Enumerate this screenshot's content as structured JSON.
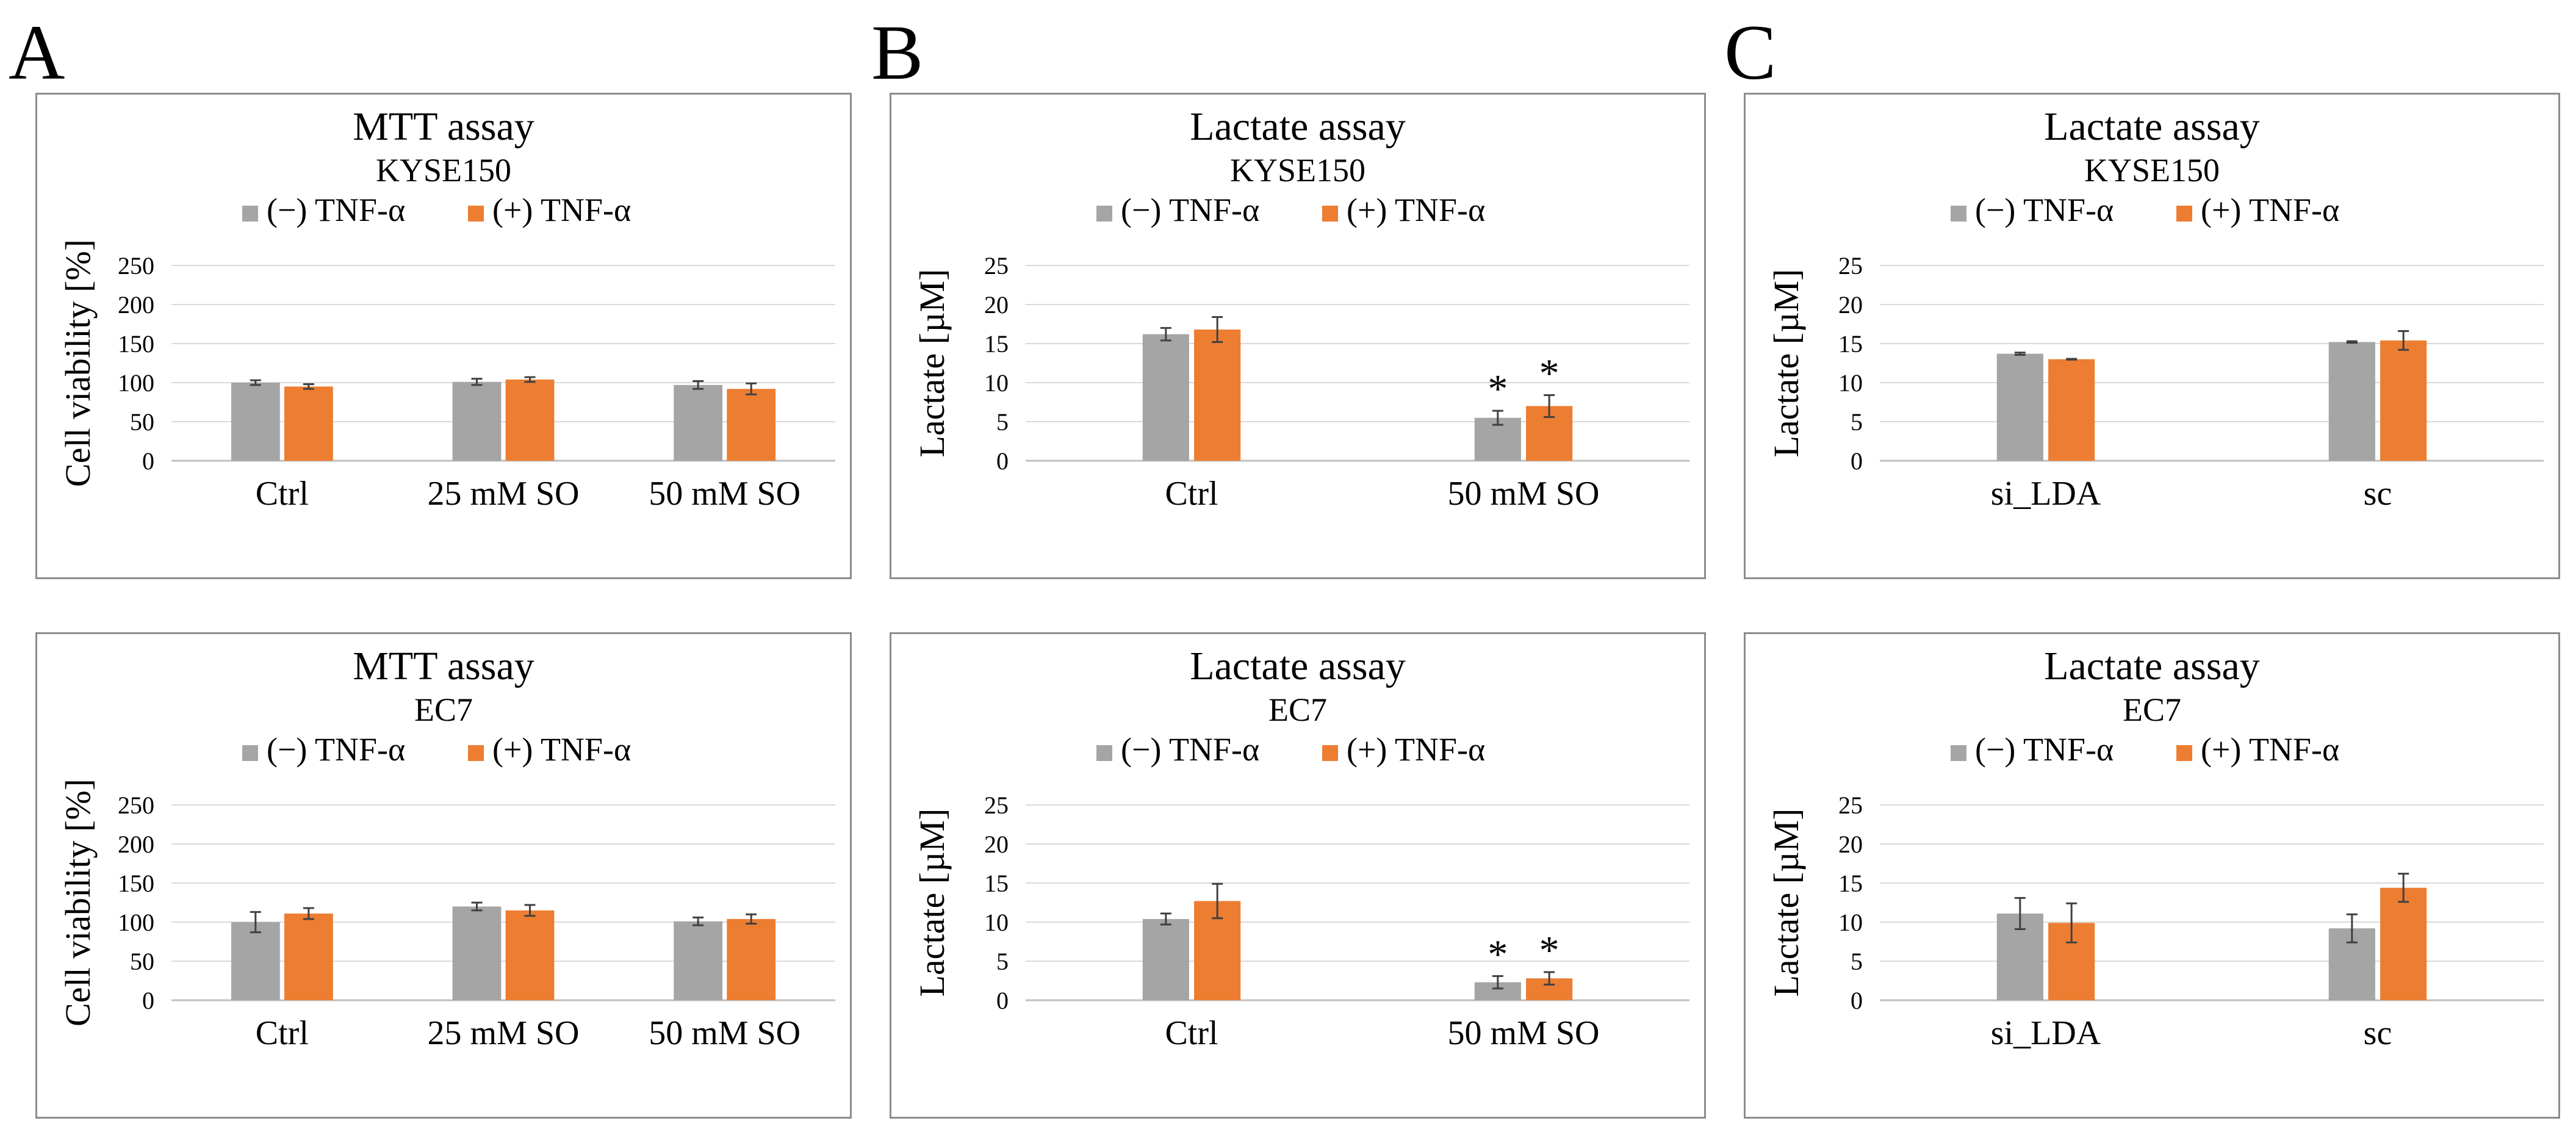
{
  "panel_labels": [
    "A",
    "B",
    "C"
  ],
  "colors": {
    "minus": "#a5a5a5",
    "plus": "#ed7d31",
    "grid": "#d9d9d9",
    "axis": "#bfbfbf",
    "error": "#404040"
  },
  "chart_data": [
    {
      "type": "bar",
      "title": "MTT assay",
      "subtitle": "KYSE150",
      "ylabel": "Cell viability [%]",
      "xlabel": "",
      "ylim": [
        0,
        250
      ],
      "yticks": [
        0,
        50,
        100,
        150,
        200,
        250
      ],
      "grid": true,
      "legend_position": "top",
      "categories": [
        "Ctrl",
        "25 mM SO",
        "50 mM SO"
      ],
      "series": [
        {
          "name": "(−) TNF-α",
          "values": [
            100,
            101,
            97
          ],
          "errors": [
            3,
            4,
            5
          ],
          "annotations": [
            "",
            "",
            ""
          ]
        },
        {
          "name": "(+) TNF-α",
          "values": [
            95,
            104,
            92
          ],
          "errors": [
            3,
            3,
            7
          ],
          "annotations": [
            "",
            "",
            ""
          ]
        }
      ]
    },
    {
      "type": "bar",
      "title": "Lactate assay",
      "subtitle": "KYSE150",
      "ylabel": "Lactate [µM]",
      "xlabel": "",
      "ylim": [
        0,
        25
      ],
      "yticks": [
        0,
        5,
        10,
        15,
        20,
        25
      ],
      "grid": true,
      "legend_position": "top",
      "categories": [
        "Ctrl",
        "50 mM SO"
      ],
      "series": [
        {
          "name": "(−) TNF-α",
          "values": [
            16.2,
            5.5
          ],
          "errors": [
            0.8,
            0.9
          ],
          "annotations": [
            "",
            "*"
          ]
        },
        {
          "name": "(+) TNF-α",
          "values": [
            16.8,
            7.0
          ],
          "errors": [
            1.6,
            1.4
          ],
          "annotations": [
            "",
            "*"
          ]
        }
      ]
    },
    {
      "type": "bar",
      "title": "Lactate assay",
      "subtitle": "KYSE150",
      "ylabel": "Lactate [µM]",
      "xlabel": "",
      "ylim": [
        0,
        25
      ],
      "yticks": [
        0,
        5,
        10,
        15,
        20,
        25
      ],
      "grid": true,
      "legend_position": "top",
      "categories": [
        "si_LDA",
        "sc"
      ],
      "series": [
        {
          "name": "(−) TNF-α",
          "values": [
            13.7,
            15.2
          ],
          "errors": [
            0.15,
            0.1
          ],
          "annotations": [
            "",
            ""
          ]
        },
        {
          "name": "(+) TNF-α",
          "values": [
            13.0,
            15.4
          ],
          "errors": [
            0.05,
            1.2
          ],
          "annotations": [
            "",
            ""
          ]
        }
      ]
    },
    {
      "type": "bar",
      "title": "MTT assay",
      "subtitle": "EC7",
      "ylabel": "Cell viability [%]",
      "xlabel": "",
      "ylim": [
        0,
        250
      ],
      "yticks": [
        0,
        50,
        100,
        150,
        200,
        250
      ],
      "grid": true,
      "legend_position": "top",
      "categories": [
        "Ctrl",
        "25 mM SO",
        "50 mM SO"
      ],
      "series": [
        {
          "name": "(−) TNF-α",
          "values": [
            100,
            120,
            101
          ],
          "errors": [
            13,
            5,
            5
          ],
          "annotations": [
            "",
            "",
            ""
          ]
        },
        {
          "name": "(+) TNF-α",
          "values": [
            111,
            115,
            104
          ],
          "errors": [
            7,
            7,
            6
          ],
          "annotations": [
            "",
            "",
            ""
          ]
        }
      ]
    },
    {
      "type": "bar",
      "title": "Lactate assay",
      "subtitle": "EC7",
      "ylabel": "Lactate [µM]",
      "xlabel": "",
      "ylim": [
        0,
        25
      ],
      "yticks": [
        0,
        5,
        10,
        15,
        20,
        25
      ],
      "grid": true,
      "legend_position": "top",
      "categories": [
        "Ctrl",
        "50 mM SO"
      ],
      "series": [
        {
          "name": "(−) TNF-α",
          "values": [
            10.4,
            2.3
          ],
          "errors": [
            0.7,
            0.8
          ],
          "annotations": [
            "",
            "*"
          ]
        },
        {
          "name": "(+) TNF-α",
          "values": [
            12.7,
            2.8
          ],
          "errors": [
            2.2,
            0.8
          ],
          "annotations": [
            "",
            "*"
          ]
        }
      ]
    },
    {
      "type": "bar",
      "title": "Lactate assay",
      "subtitle": "EC7",
      "ylabel": "Lactate [µM]",
      "xlabel": "",
      "ylim": [
        0,
        25
      ],
      "yticks": [
        0,
        5,
        10,
        15,
        20,
        25
      ],
      "grid": true,
      "legend_position": "top",
      "categories": [
        "si_LDA",
        "sc"
      ],
      "series": [
        {
          "name": "(−) TNF-α",
          "values": [
            11.1,
            9.2
          ],
          "errors": [
            2.0,
            1.8
          ],
          "annotations": [
            "",
            ""
          ]
        },
        {
          "name": "(+) TNF-α",
          "values": [
            9.9,
            14.4
          ],
          "errors": [
            2.5,
            1.8
          ],
          "annotations": [
            "",
            ""
          ]
        }
      ]
    }
  ]
}
